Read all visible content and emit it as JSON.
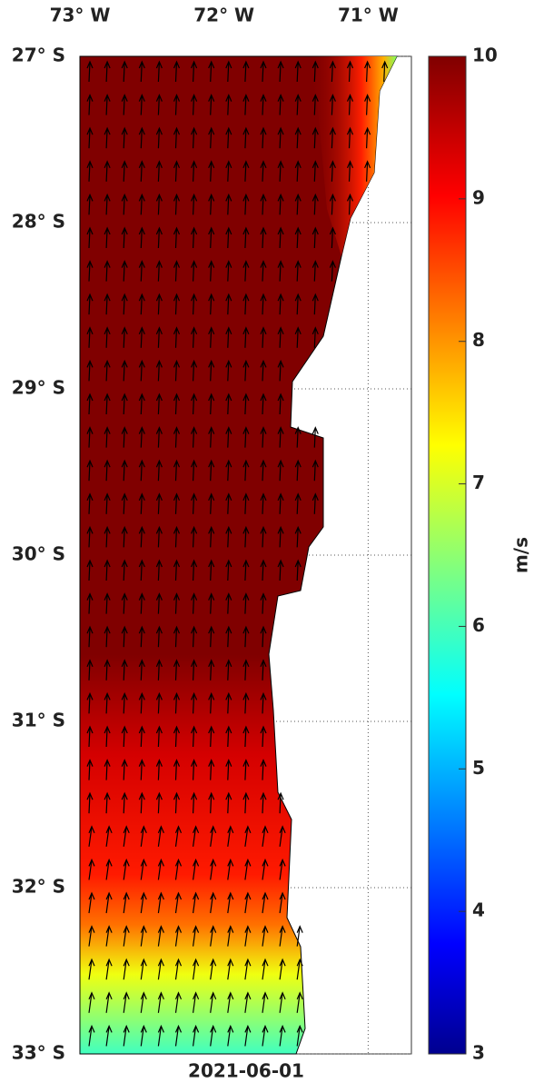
{
  "map": {
    "date": "2021-06-01",
    "xlim": [
      -73,
      -70.7
    ],
    "ylim": [
      -33,
      -27
    ],
    "lon_ticks": [
      {
        "value": -73,
        "label": "73° W"
      },
      {
        "value": -72,
        "label": "72° W"
      },
      {
        "value": -71,
        "label": "71° W"
      }
    ],
    "lat_ticks": [
      {
        "value": -27,
        "label": "27° S"
      },
      {
        "value": -28,
        "label": "28° S"
      },
      {
        "value": -29,
        "label": "29° S"
      },
      {
        "value": -30,
        "label": "30° S"
      },
      {
        "value": -31,
        "label": "31° S"
      },
      {
        "value": -32,
        "label": "32° S"
      },
      {
        "value": -33,
        "label": "33° S"
      }
    ],
    "colorbar": {
      "label": "m/s",
      "lim": [
        3,
        10
      ],
      "ticks": [
        3,
        4,
        5,
        6,
        7,
        8,
        9,
        10
      ]
    }
  }
}
